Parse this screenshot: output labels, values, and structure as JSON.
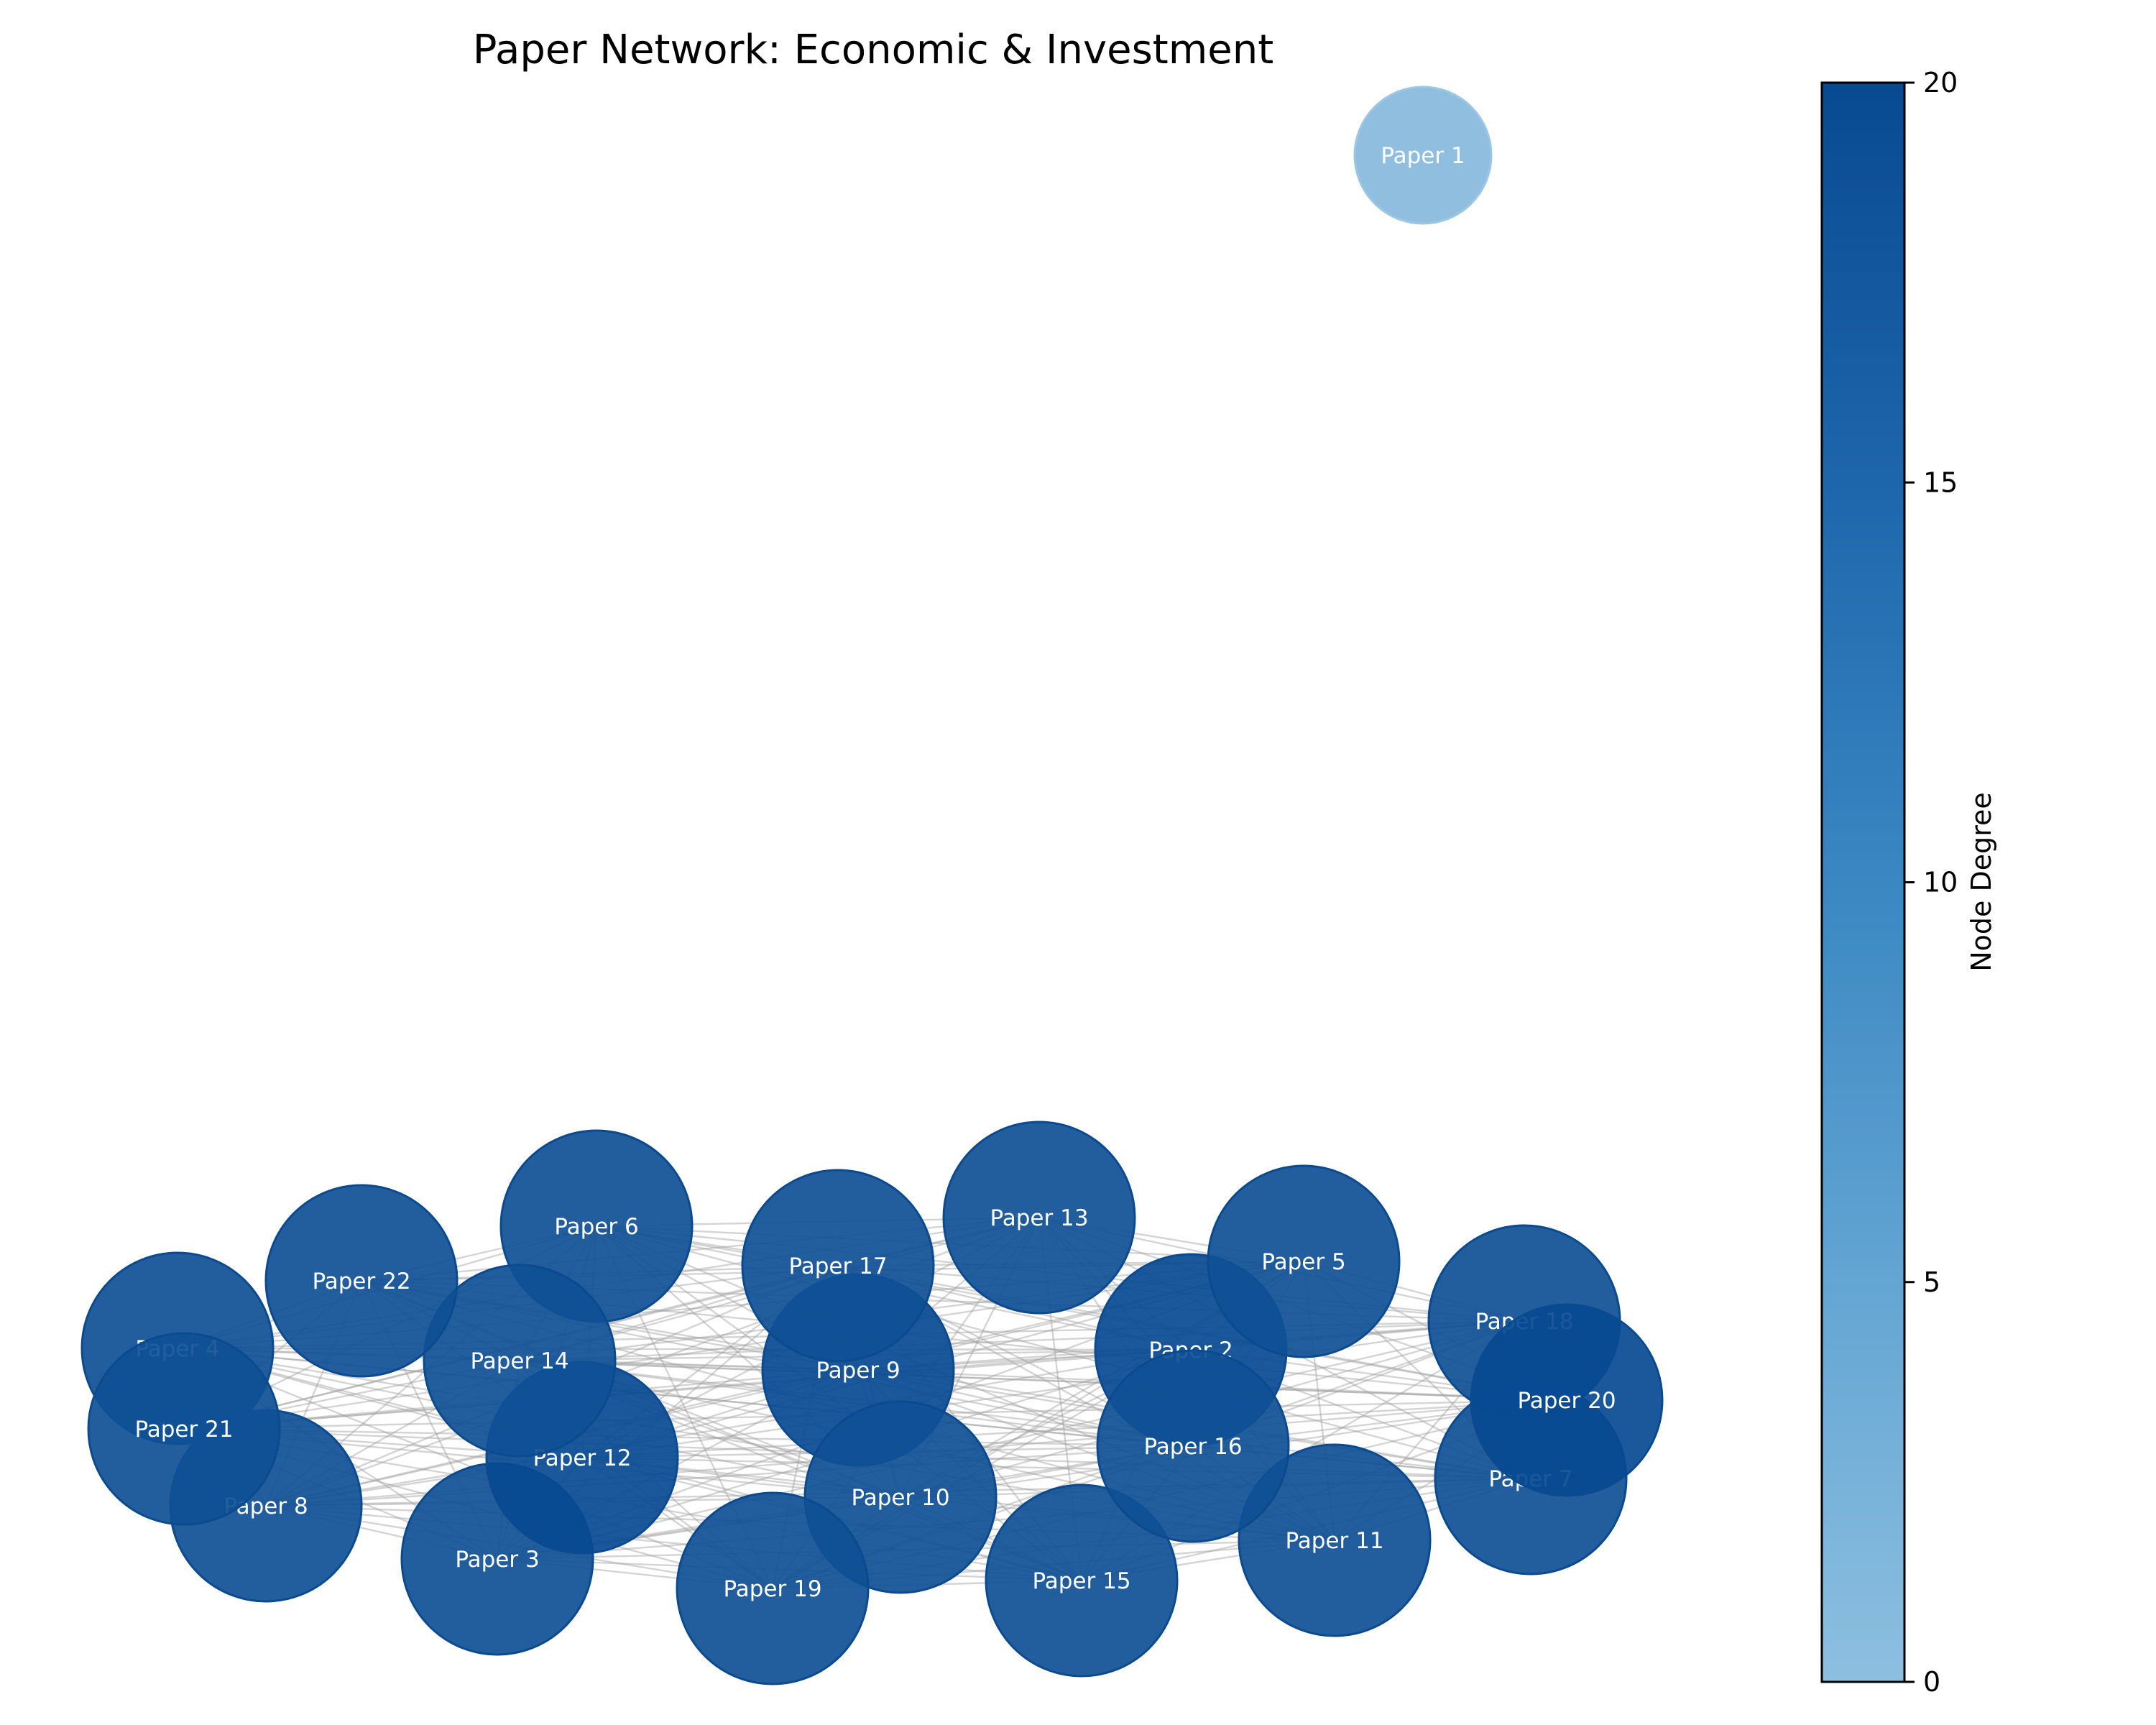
{
  "title": "Paper Network: Economic & Investment",
  "colorbar": {
    "label": "Node Degree",
    "min": 0,
    "max": 20,
    "ticks": [
      "0",
      "5",
      "10",
      "15",
      "20"
    ],
    "color_low": "#8dbfe0",
    "color_high": "#084a92"
  },
  "edge_color": "#a0a0a0",
  "node_border_color": "#0b4a8f",
  "nodes": [
    {
      "label": "Paper 1",
      "degree": 1
    },
    {
      "label": "Paper 2",
      "degree": 20
    },
    {
      "label": "Paper 3",
      "degree": 19
    },
    {
      "label": "Paper 4",
      "degree": 19
    },
    {
      "label": "Paper 5",
      "degree": 19
    },
    {
      "label": "Paper 6",
      "degree": 19
    },
    {
      "label": "Paper 7",
      "degree": 19
    },
    {
      "label": "Paper 8",
      "degree": 19
    },
    {
      "label": "Paper 9",
      "degree": 20
    },
    {
      "label": "Paper 10",
      "degree": 19
    },
    {
      "label": "Paper 11",
      "degree": 19
    },
    {
      "label": "Paper 12",
      "degree": 20
    },
    {
      "label": "Paper 13",
      "degree": 19
    },
    {
      "label": "Paper 14",
      "degree": 19
    },
    {
      "label": "Paper 15",
      "degree": 19
    },
    {
      "label": "Paper 16",
      "degree": 19
    },
    {
      "label": "Paper 17",
      "degree": 19
    },
    {
      "label": "Paper 18",
      "degree": 19
    },
    {
      "label": "Paper 19",
      "degree": 19
    },
    {
      "label": "Paper 20",
      "degree": 20
    },
    {
      "label": "Paper 21",
      "degree": 19
    },
    {
      "label": "Paper 22",
      "degree": 19
    }
  ]
}
